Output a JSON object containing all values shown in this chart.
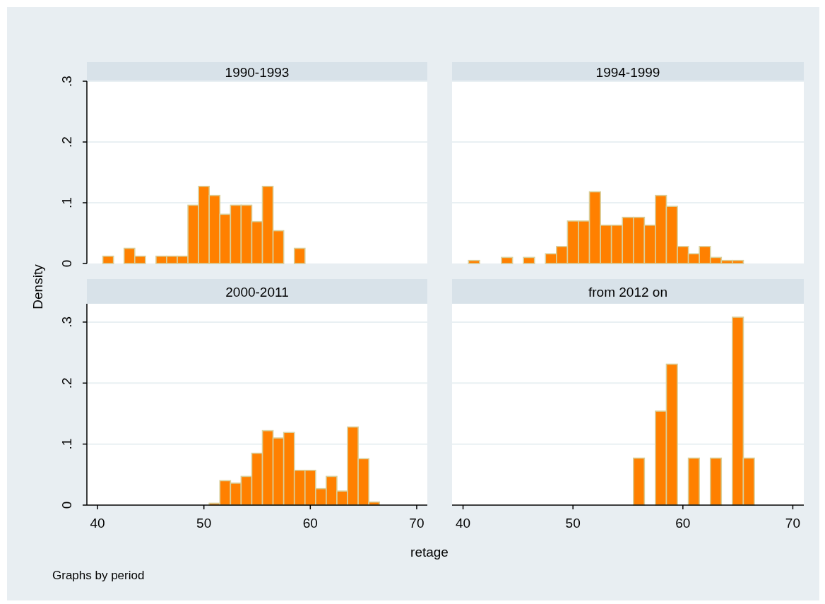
{
  "chart_data": [
    {
      "type": "histogram",
      "title": "1990-1993",
      "ylabel": "Density",
      "bins": [
        40.5,
        41.5,
        42.5,
        43.5,
        44.5,
        45.5,
        46.5,
        47.5,
        48.5,
        49.5,
        50.5,
        51.5,
        52.5,
        53.5,
        54.5,
        55.5,
        56.5,
        57.5,
        58.5,
        59.5
      ],
      "values": [
        0.012,
        0,
        0.025,
        0.012,
        0,
        0.012,
        0.012,
        0.012,
        0.096,
        0.127,
        0.112,
        0.081,
        0.096,
        0.096,
        0.069,
        0.127,
        0.054,
        0,
        0.025
      ],
      "color": "#ff8000",
      "xlim": [
        39,
        71
      ],
      "xticks": [
        40,
        50,
        60,
        70
      ],
      "ylim": [
        0,
        0.3
      ],
      "yticks": [
        {
          "value": 0,
          "label": "0"
        },
        {
          "value": 0.1,
          "label": ".1"
        },
        {
          "value": 0.2,
          "label": ".2"
        },
        {
          "value": 0.3,
          "label": ".3"
        }
      ],
      "grid": "y",
      "tick_labels": "y"
    },
    {
      "type": "histogram",
      "title": "1994-1999",
      "bins": [
        40.5,
        41.5,
        42.5,
        43.5,
        44.5,
        45.5,
        46.5,
        47.5,
        48.5,
        49.5,
        50.5,
        51.5,
        52.5,
        53.5,
        54.5,
        55.5,
        56.5,
        57.5,
        58.5,
        59.5,
        60.5,
        61.5,
        62.5,
        63.5,
        64.5,
        65.5
      ],
      "values": [
        0.005,
        0,
        0,
        0.01,
        0,
        0.01,
        0,
        0.016,
        0.028,
        0.07,
        0.07,
        0.118,
        0.063,
        0.063,
        0.076,
        0.076,
        0.063,
        0.112,
        0.094,
        0.028,
        0.016,
        0.028,
        0.01,
        0.005,
        0.005
      ],
      "color": "#ff8000",
      "xlim": [
        39,
        71
      ],
      "xticks": [
        40,
        50,
        60,
        70
      ],
      "ylim": [
        0,
        0.3
      ],
      "yticks": [
        0,
        0.1,
        0.2,
        0.3
      ],
      "grid": "y",
      "tick_labels": false
    },
    {
      "type": "histogram",
      "title": "2000-2011",
      "annotations": [
        "Graphs by period"
      ],
      "bins": [
        50.5,
        51.5,
        52.5,
        53.5,
        54.5,
        55.5,
        56.5,
        57.5,
        58.5,
        59.5,
        60.5,
        61.5,
        62.5,
        63.5,
        64.5,
        65.5,
        66.5
      ],
      "values": [
        0.003,
        0.04,
        0.036,
        0.047,
        0.085,
        0.122,
        0.11,
        0.119,
        0.057,
        0.057,
        0.027,
        0.047,
        0.023,
        0.128,
        0.076,
        0.005
      ],
      "color": "#ff8000",
      "xlim": [
        39,
        71
      ],
      "xticks": [
        40,
        50,
        60,
        70
      ],
      "ylim": [
        0,
        0.33
      ],
      "yticks": [
        {
          "value": 0,
          "label": "0"
        },
        {
          "value": 0.1,
          "label": ".1"
        },
        {
          "value": 0.2,
          "label": ".2"
        },
        {
          "value": 0.3,
          "label": ".3"
        }
      ],
      "grid": "y"
    },
    {
      "type": "histogram",
      "title": "from 2012 on",
      "xlabel": "retage",
      "bins": [
        55.5,
        56.5,
        57.5,
        58.5,
        59.5,
        60.5,
        61.5,
        62.5,
        63.5,
        64.5,
        65.5,
        66.5
      ],
      "values": [
        0.077,
        0,
        0.154,
        0.231,
        0,
        0.077,
        0,
        0.077,
        0,
        0.308,
        0.077
      ],
      "color": "#ff8000",
      "xlim": [
        39,
        71
      ],
      "xticks": [
        40,
        50,
        60,
        70
      ],
      "ylim": [
        0,
        0.33
      ],
      "yticks": [
        0,
        0.1,
        0.2,
        0.3
      ],
      "grid": "y",
      "tick_labels": "x"
    }
  ]
}
